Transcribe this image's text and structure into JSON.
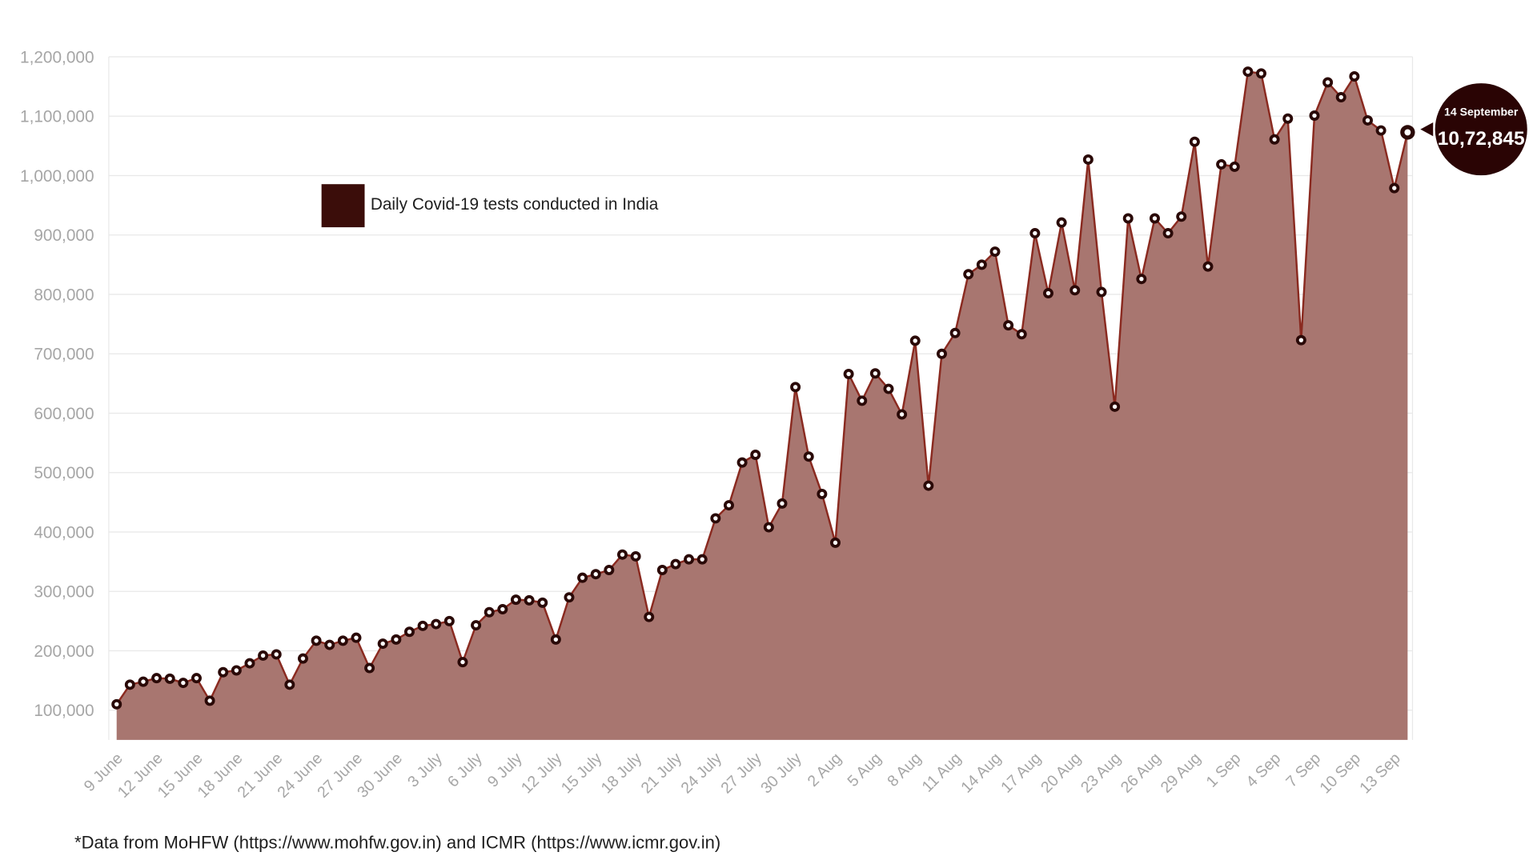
{
  "chart_data": {
    "type": "area",
    "legend_position": "upper-left",
    "ylim": [
      50000,
      1200000
    ],
    "y_tick_labels": [
      "100,000",
      "200,000",
      "300,000",
      "400,000",
      "500,000",
      "600,000",
      "700,000",
      "800,000",
      "900,000",
      "1,000,000",
      "1,100,000",
      "1,200,000"
    ],
    "x": [
      "9 June",
      "10 June",
      "11 June",
      "12 June",
      "13 June",
      "14 June",
      "15 June",
      "16 June",
      "17 June",
      "18 June",
      "19 June",
      "20 June",
      "21 June",
      "22 June",
      "23 June",
      "24 June",
      "25 June",
      "26 June",
      "27 June",
      "28 June",
      "29 June",
      "30 June",
      "1 July",
      "2 July",
      "3 July",
      "4 July",
      "5 July",
      "6 July",
      "7 July",
      "8 July",
      "9 July",
      "10 July",
      "11 July",
      "12 July",
      "13 July",
      "14 July",
      "15 July",
      "16 July",
      "17 July",
      "18 July",
      "19 July",
      "20 July",
      "21 July",
      "22 July",
      "23 July",
      "24 July",
      "25 July",
      "26 July",
      "27 July",
      "28 July",
      "29 July",
      "30 July",
      "31 July",
      "1 Aug",
      "2 Aug",
      "3 Aug",
      "4 Aug",
      "5 Aug",
      "6 Aug",
      "7 Aug",
      "8 Aug",
      "9 Aug",
      "10 Aug",
      "11 Aug",
      "12 Aug",
      "13 Aug",
      "14 Aug",
      "15 Aug",
      "16 Aug",
      "17 Aug",
      "18 Aug",
      "19 Aug",
      "20 Aug",
      "21 Aug",
      "22 Aug",
      "23 Aug",
      "24 Aug",
      "25 Aug",
      "26 Aug",
      "27 Aug",
      "28 Aug",
      "29 Aug",
      "30 Aug",
      "31 Aug",
      "1 Sep",
      "2 Sep",
      "3 Sep",
      "4 Sep",
      "5 Sep",
      "6 Sep",
      "7 Sep",
      "8 Sep",
      "9 Sep",
      "10 Sep",
      "11 Sep",
      "12 Sep",
      "13 Sep",
      "14 Sep"
    ],
    "series": [
      {
        "name": "Daily Covid-19 tests conducted in India",
        "values": [
          110000,
          143000,
          148000,
          154000,
          153000,
          146000,
          154000,
          116000,
          164000,
          167000,
          179000,
          192000,
          194000,
          143000,
          187000,
          217000,
          210000,
          217000,
          222000,
          171000,
          212000,
          219000,
          232000,
          242000,
          245000,
          250000,
          181000,
          243000,
          265000,
          270000,
          286000,
          285000,
          281000,
          219000,
          290000,
          323000,
          329000,
          336000,
          362000,
          359000,
          257000,
          336000,
          346000,
          354000,
          354000,
          423000,
          445000,
          517000,
          530000,
          408000,
          448000,
          644000,
          527000,
          464000,
          382000,
          666000,
          621000,
          667000,
          641000,
          598000,
          722000,
          478000,
          700000,
          735000,
          834000,
          850000,
          872000,
          748000,
          733000,
          903000,
          802000,
          921000,
          807000,
          1027000,
          804000,
          611000,
          928000,
          826000,
          928000,
          903000,
          931000,
          1057000,
          847000,
          1019000,
          1015000,
          1175000,
          1172000,
          1061000,
          1096000,
          723000,
          1101000,
          1157000,
          1132000,
          1167000,
          1093000,
          1076000,
          979000,
          1072845
        ]
      }
    ],
    "annotation": {
      "date": "14 September",
      "value": "10,72,845"
    },
    "colors": {
      "area_fill": "#a87670",
      "line": "#8a2a20",
      "marker": "#2a0907",
      "legend_swatch": "#3b0d0a",
      "callout": "#2a0404",
      "gridline": "#e8e8e8",
      "axis_text": "#a6a6a6",
      "text": "#1e1e1e"
    }
  },
  "footnote": "*Data from MoHFW (https://www.mohfw.gov.in) and ICMR (https://www.icmr.gov.in)"
}
